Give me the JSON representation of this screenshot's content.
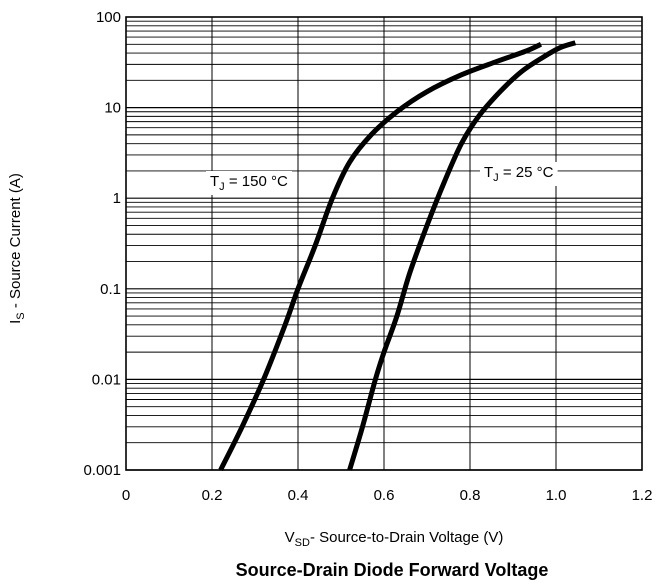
{
  "chart_data": {
    "type": "line",
    "title": "Source-Drain Diode Forward Voltage",
    "xlabel": {
      "main": "V",
      "sub": "SD",
      "rest": "- Source-to-Drain Voltage (V)"
    },
    "ylabel": {
      "main": "I",
      "sub": "S",
      "rest": " - Source Current (A)"
    },
    "xlim": [
      0,
      1.2
    ],
    "ylim": [
      0.001,
      100
    ],
    "yscale": "log",
    "grid": true,
    "xticks": [
      {
        "value": 0,
        "label": "0"
      },
      {
        "value": 0.2,
        "label": "0.2"
      },
      {
        "value": 0.4,
        "label": "0.4"
      },
      {
        "value": 0.6,
        "label": "0.6"
      },
      {
        "value": 0.8,
        "label": "0.8"
      },
      {
        "value": 1.0,
        "label": "1.0"
      },
      {
        "value": 1.2,
        "label": "1.2"
      }
    ],
    "yticks": [
      {
        "value": 0.001,
        "label": "0.001"
      },
      {
        "value": 0.01,
        "label": "0.01"
      },
      {
        "value": 0.1,
        "label": "0.1"
      },
      {
        "value": 1,
        "label": "1"
      },
      {
        "value": 10,
        "label": "10"
      },
      {
        "value": 100,
        "label": "100"
      }
    ],
    "series": [
      {
        "name": "TJ = 150 °C",
        "label": {
          "main": "T",
          "sub": "J",
          "rest": " = 150 °C"
        },
        "x": [
          0.22,
          0.27,
          0.32,
          0.37,
          0.4,
          0.44,
          0.48,
          0.52,
          0.57,
          0.63,
          0.7,
          0.78,
          0.86,
          0.93,
          0.965
        ],
        "y": [
          0.001,
          0.003,
          0.01,
          0.04,
          0.1,
          0.3,
          1,
          2.5,
          5,
          9,
          15,
          23,
          32,
          42,
          50
        ]
      },
      {
        "name": "TJ = 25 °C",
        "label": {
          "main": "T",
          "sub": "J",
          "rest": " = 25 °C"
        },
        "x": [
          0.52,
          0.55,
          0.58,
          0.6,
          0.63,
          0.66,
          0.7,
          0.74,
          0.78,
          0.82,
          0.87,
          0.92,
          0.97,
          1.01,
          1.045
        ],
        "y": [
          0.001,
          0.003,
          0.01,
          0.02,
          0.05,
          0.15,
          0.5,
          1.5,
          4,
          8,
          15,
          25,
          36,
          46,
          52
        ]
      }
    ]
  }
}
